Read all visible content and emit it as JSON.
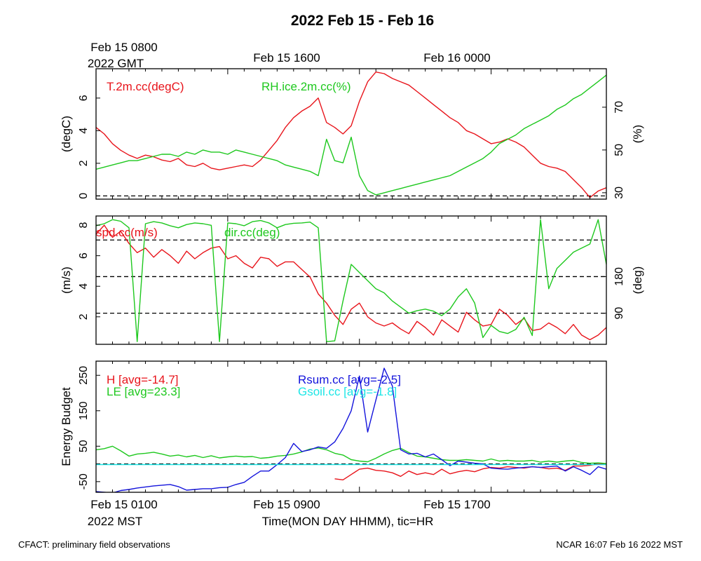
{
  "title": "2022 Feb 15 - Feb 16",
  "top_axis": {
    "first_label_line1": "Feb 15 0800",
    "first_label_line2": "2022 GMT",
    "labels": [
      "Feb 15 1600",
      "Feb 16 0000"
    ]
  },
  "bottom_axis": {
    "first_label_line1": "Feb 15 0100",
    "first_label_line2": "2022 MST",
    "labels": [
      "Feb 15 0900",
      "Feb 15 1700"
    ],
    "xlabel": "Time(MON DAY HHMM), tic=HR"
  },
  "footer": {
    "left": "CFACT: preliminary field observations",
    "right": "NCAR 16:07 Feb 16 2022 MST"
  },
  "colors": {
    "red": "#e8141b",
    "green": "#1ec81e",
    "blue": "#1414dc",
    "cyan": "#1ee6e6",
    "black": "#000000"
  },
  "chart_data": [
    {
      "type": "line",
      "xlabel": "",
      "ylabel": "(degC)",
      "ylabel_right": "(%)",
      "xlim": [
        0,
        31
      ],
      "ylim": [
        -0.2,
        7.8
      ],
      "ylim_right": [
        27,
        88
      ],
      "yticks": [
        0,
        2,
        4,
        6
      ],
      "yticks_right": [
        30,
        50,
        70
      ],
      "reference_lines_left": [
        0
      ],
      "series": [
        {
          "name": "T.2m.cc(degC)",
          "color": "#e8141b",
          "axis": "left",
          "x": [
            0,
            0.5,
            1,
            1.5,
            2,
            2.5,
            3,
            3.5,
            4,
            4.5,
            5,
            5.5,
            6,
            6.5,
            7,
            7.5,
            8,
            8.5,
            9,
            9.5,
            10,
            10.5,
            11,
            11.5,
            12,
            12.5,
            13,
            13.5,
            14,
            14.5,
            15,
            15.5,
            16,
            16.5,
            17,
            17.5,
            18,
            18.5,
            19,
            19.5,
            20,
            20.5,
            21,
            21.5,
            22,
            22.5,
            23,
            23.5,
            24,
            24.5,
            25,
            25.5,
            26,
            26.5,
            27,
            27.5,
            28,
            28.5,
            29,
            29.5,
            30,
            30.5,
            31
          ],
          "values": [
            4.2,
            3.8,
            3.2,
            2.8,
            2.5,
            2.3,
            2.5,
            2.4,
            2.2,
            2.1,
            2.3,
            1.9,
            1.8,
            2.0,
            1.7,
            1.6,
            1.7,
            1.8,
            1.9,
            1.8,
            2.2,
            2.8,
            3.4,
            4.2,
            4.8,
            5.2,
            5.5,
            6.0,
            4.5,
            4.2,
            3.8,
            4.3,
            5.8,
            7.0,
            7.6,
            7.5,
            7.2,
            7.0,
            6.8,
            6.4,
            6.0,
            5.6,
            5.2,
            4.8,
            4.5,
            4.0,
            3.8,
            3.5,
            3.2,
            3.3,
            3.5,
            3.3,
            3.0,
            2.5,
            2.0,
            1.8,
            1.7,
            1.5,
            1.0,
            0.5,
            -0.1,
            0.3,
            0.5
          ]
        },
        {
          "name": "RH.ice.2m.cc(%)",
          "color": "#1ec81e",
          "axis": "right",
          "x": [
            0,
            0.5,
            1,
            1.5,
            2,
            2.5,
            3,
            3.5,
            4,
            4.5,
            5,
            5.5,
            6,
            6.5,
            7,
            7.5,
            8,
            8.5,
            9,
            9.5,
            10,
            10.5,
            11,
            11.5,
            12,
            12.5,
            13,
            13.5,
            14,
            14.5,
            15,
            15.5,
            16,
            16.5,
            17,
            17.5,
            18,
            18.5,
            19,
            19.5,
            20,
            20.5,
            21,
            21.5,
            22,
            22.5,
            23,
            23.5,
            24,
            24.5,
            25,
            25.5,
            26,
            26.5,
            27,
            27.5,
            28,
            28.5,
            29,
            29.5,
            30,
            30.5,
            31
          ],
          "values": [
            41,
            42,
            43,
            44,
            45,
            45,
            46,
            47,
            48,
            48,
            47,
            49,
            48,
            50,
            49,
            49,
            48,
            50,
            49,
            48,
            47,
            46,
            45,
            43,
            42,
            41,
            40,
            38,
            55,
            45,
            44,
            56,
            38,
            31,
            29,
            30,
            31,
            32,
            33,
            34,
            35,
            36,
            37,
            38,
            40,
            42,
            44,
            46,
            49,
            53,
            55,
            57,
            60,
            62,
            64,
            66,
            69,
            71,
            74,
            76,
            79,
            82,
            85
          ]
        }
      ]
    },
    {
      "type": "line",
      "xlabel": "",
      "ylabel": "(m/s)",
      "ylabel_right": "(deg)",
      "xlim": [
        0,
        31
      ],
      "ylim": [
        0.2,
        8.6
      ],
      "ylim_right": [
        13.5,
        329
      ],
      "yticks": [
        2,
        4,
        6,
        8
      ],
      "yticks_right": [
        90,
        180
      ],
      "reference_lines_right": [
        90,
        180,
        270
      ],
      "series": [
        {
          "name": "spd.cc(m/s)",
          "color": "#e8141b",
          "axis": "left",
          "x": [
            0,
            0.5,
            1,
            1.5,
            2,
            2.5,
            3,
            3.5,
            4,
            4.5,
            5,
            5.5,
            6,
            6.5,
            7,
            7.5,
            8,
            8.5,
            9,
            9.5,
            10,
            10.5,
            11,
            11.5,
            12,
            12.5,
            13,
            13.5,
            14,
            14.5,
            15,
            15.5,
            16,
            16.5,
            17,
            17.5,
            18,
            18.5,
            19,
            19.5,
            20,
            20.5,
            21,
            21.5,
            22,
            22.5,
            23,
            23.5,
            24,
            24.5,
            25,
            25.5,
            26,
            26.5,
            27,
            27.5,
            28,
            28.5,
            29,
            29.5,
            30,
            30.5,
            31
          ],
          "values": [
            7.4,
            8.0,
            7.2,
            7.6,
            6.8,
            6.2,
            6.5,
            5.9,
            6.4,
            6.0,
            5.5,
            6.3,
            5.8,
            6.2,
            6.5,
            6.6,
            5.8,
            6.0,
            5.5,
            5.2,
            5.9,
            5.8,
            5.3,
            5.6,
            5.6,
            5.1,
            4.6,
            3.5,
            2.9,
            2.1,
            1.5,
            2.5,
            2.9,
            2.0,
            1.6,
            1.4,
            1.6,
            1.2,
            0.9,
            1.7,
            1.3,
            0.8,
            1.8,
            1.4,
            1.0,
            2.3,
            1.8,
            1.4,
            1.5,
            2.5,
            2.1,
            1.5,
            1.9,
            1.1,
            1.2,
            1.6,
            1.3,
            0.9,
            1.5,
            0.8,
            0.5,
            0.8,
            1.3
          ]
        },
        {
          "name": "dir.cc(deg)",
          "color": "#1ec81e",
          "axis": "right",
          "x": [
            0,
            0.5,
            1,
            1.5,
            2,
            2.5,
            3,
            3.5,
            4,
            4.5,
            5,
            5.5,
            6,
            6.5,
            7,
            7.5,
            8,
            8.5,
            9,
            9.5,
            10,
            10.5,
            11,
            11.5,
            12,
            12.5,
            13,
            13.5,
            14,
            14.5,
            15,
            15.5,
            16,
            16.5,
            17,
            17.5,
            18,
            18.5,
            19,
            19.5,
            20,
            20.5,
            21,
            21.5,
            22,
            22.5,
            23,
            23.5,
            24,
            24.5,
            25,
            25.5,
            26,
            26.5,
            27,
            27.5,
            28,
            28.5,
            29,
            29.5,
            30,
            30.5,
            31
          ],
          "values": [
            305,
            310,
            320,
            316,
            300,
            20,
            310,
            315,
            312,
            305,
            300,
            308,
            312,
            310,
            306,
            20,
            312,
            310,
            305,
            315,
            318,
            312,
            300,
            308,
            311,
            312,
            314,
            300,
            20,
            22,
            120,
            210,
            190,
            170,
            150,
            140,
            120,
            105,
            90,
            96,
            100,
            95,
            84,
            100,
            130,
            150,
            115,
            30,
            60,
            45,
            40,
            50,
            80,
            35,
            320,
            150,
            200,
            220,
            240,
            250,
            260,
            320,
            210
          ]
        }
      ]
    },
    {
      "type": "line",
      "xlabel": "Time(MON DAY HHMM), tic=HR",
      "ylabel": "Energy Budget",
      "xlim": [
        0,
        31
      ],
      "ylim": [
        -80,
        290
      ],
      "yticks": [
        -50,
        50,
        150,
        250
      ],
      "reference_lines_left": [
        0
      ],
      "series": [
        {
          "name": "H",
          "annotation": "[avg=-14.7]",
          "color": "#e8141b",
          "x": [
            14.5,
            15,
            15.5,
            16,
            16.5,
            17,
            17.5,
            18,
            18.5,
            19,
            19.5,
            20,
            20.5,
            21,
            21.5,
            22,
            22.5,
            23,
            23.5,
            24,
            24.5,
            25,
            25.5,
            26,
            26.5,
            27,
            27.5,
            28,
            28.5,
            29,
            29.5,
            30,
            30.5,
            31
          ],
          "values": [
            -42,
            -45,
            -30,
            -15,
            -12,
            -18,
            -20,
            -25,
            -35,
            -20,
            -30,
            -25,
            -30,
            -15,
            -28,
            -22,
            -18,
            -22,
            -14,
            -10,
            -12,
            -8,
            -10,
            -12,
            -8,
            -10,
            -14,
            -12,
            -18,
            -6,
            -6,
            -4,
            0,
            -1
          ]
        },
        {
          "name": "LE",
          "annotation": "[avg=23.3]",
          "color": "#1ec81e",
          "x": [
            0,
            0.5,
            1,
            1.5,
            2,
            2.5,
            3,
            3.5,
            4,
            4.5,
            5,
            5.5,
            6,
            6.5,
            7,
            7.5,
            8,
            8.5,
            9,
            9.5,
            10,
            10.5,
            11,
            11.5,
            12,
            12.5,
            13,
            13.5,
            14,
            14.5,
            15,
            15.5,
            16,
            16.5,
            17,
            17.5,
            18,
            18.5,
            19,
            19.5,
            20,
            20.5,
            21,
            21.5,
            22,
            22.5,
            23,
            23.5,
            24,
            24.5,
            25,
            25.5,
            26,
            26.5,
            27,
            27.5,
            28,
            28.5,
            29,
            29.5,
            30,
            30.5,
            31
          ],
          "values": [
            40,
            43,
            50,
            37,
            22,
            28,
            30,
            33,
            28,
            22,
            25,
            20,
            24,
            18,
            23,
            17,
            20,
            22,
            20,
            21,
            16,
            18,
            22,
            24,
            28,
            34,
            42,
            45,
            40,
            30,
            25,
            12,
            8,
            6,
            16,
            28,
            38,
            44,
            32,
            22,
            20,
            16,
            12,
            10,
            10,
            12,
            10,
            8,
            14,
            8,
            10,
            8,
            8,
            10,
            5,
            8,
            5,
            8,
            10,
            4,
            2,
            3,
            1
          ]
        },
        {
          "name": "Rsum.cc",
          "annotation": "[avg=-2.5]",
          "color": "#1414dc",
          "x": [
            0,
            0.5,
            1,
            1.5,
            2,
            2.5,
            3,
            3.5,
            4,
            4.5,
            5,
            5.5,
            6,
            6.5,
            7,
            7.5,
            8,
            8.5,
            9,
            9.5,
            10,
            10.5,
            11,
            11.5,
            12,
            12.5,
            13,
            13.5,
            14,
            14.5,
            15,
            15.5,
            16,
            16.5,
            17,
            17.5,
            18,
            18.5,
            19,
            19.5,
            20,
            20.5,
            21,
            21.5,
            22,
            22.5,
            23,
            23.5,
            24,
            24.5,
            25,
            25.5,
            26,
            26.5,
            27,
            27.5,
            28,
            28.5,
            29,
            29.5,
            30,
            30.5,
            31
          ],
          "values": [
            -78,
            -80,
            -82,
            -75,
            -72,
            -68,
            -65,
            -62,
            -60,
            -58,
            -64,
            -74,
            -72,
            -70,
            -70,
            -67,
            -66,
            -58,
            -52,
            -35,
            -20,
            -20,
            -2,
            18,
            58,
            35,
            40,
            48,
            44,
            62,
            100,
            150,
            248,
            90,
            180,
            270,
            220,
            40,
            28,
            30,
            20,
            28,
            12,
            -5,
            8,
            5,
            2,
            0,
            -12,
            -14,
            -15,
            -12,
            -10,
            -8,
            -10,
            -8,
            -6,
            -20,
            -8,
            -18,
            -30,
            -8,
            -15
          ]
        },
        {
          "name": "Gsoil.cc",
          "annotation": "[avg=-1.8]",
          "color": "#1ee6e6",
          "x": [
            0,
            31
          ],
          "values": [
            -1.8,
            -1.8
          ]
        }
      ]
    }
  ]
}
